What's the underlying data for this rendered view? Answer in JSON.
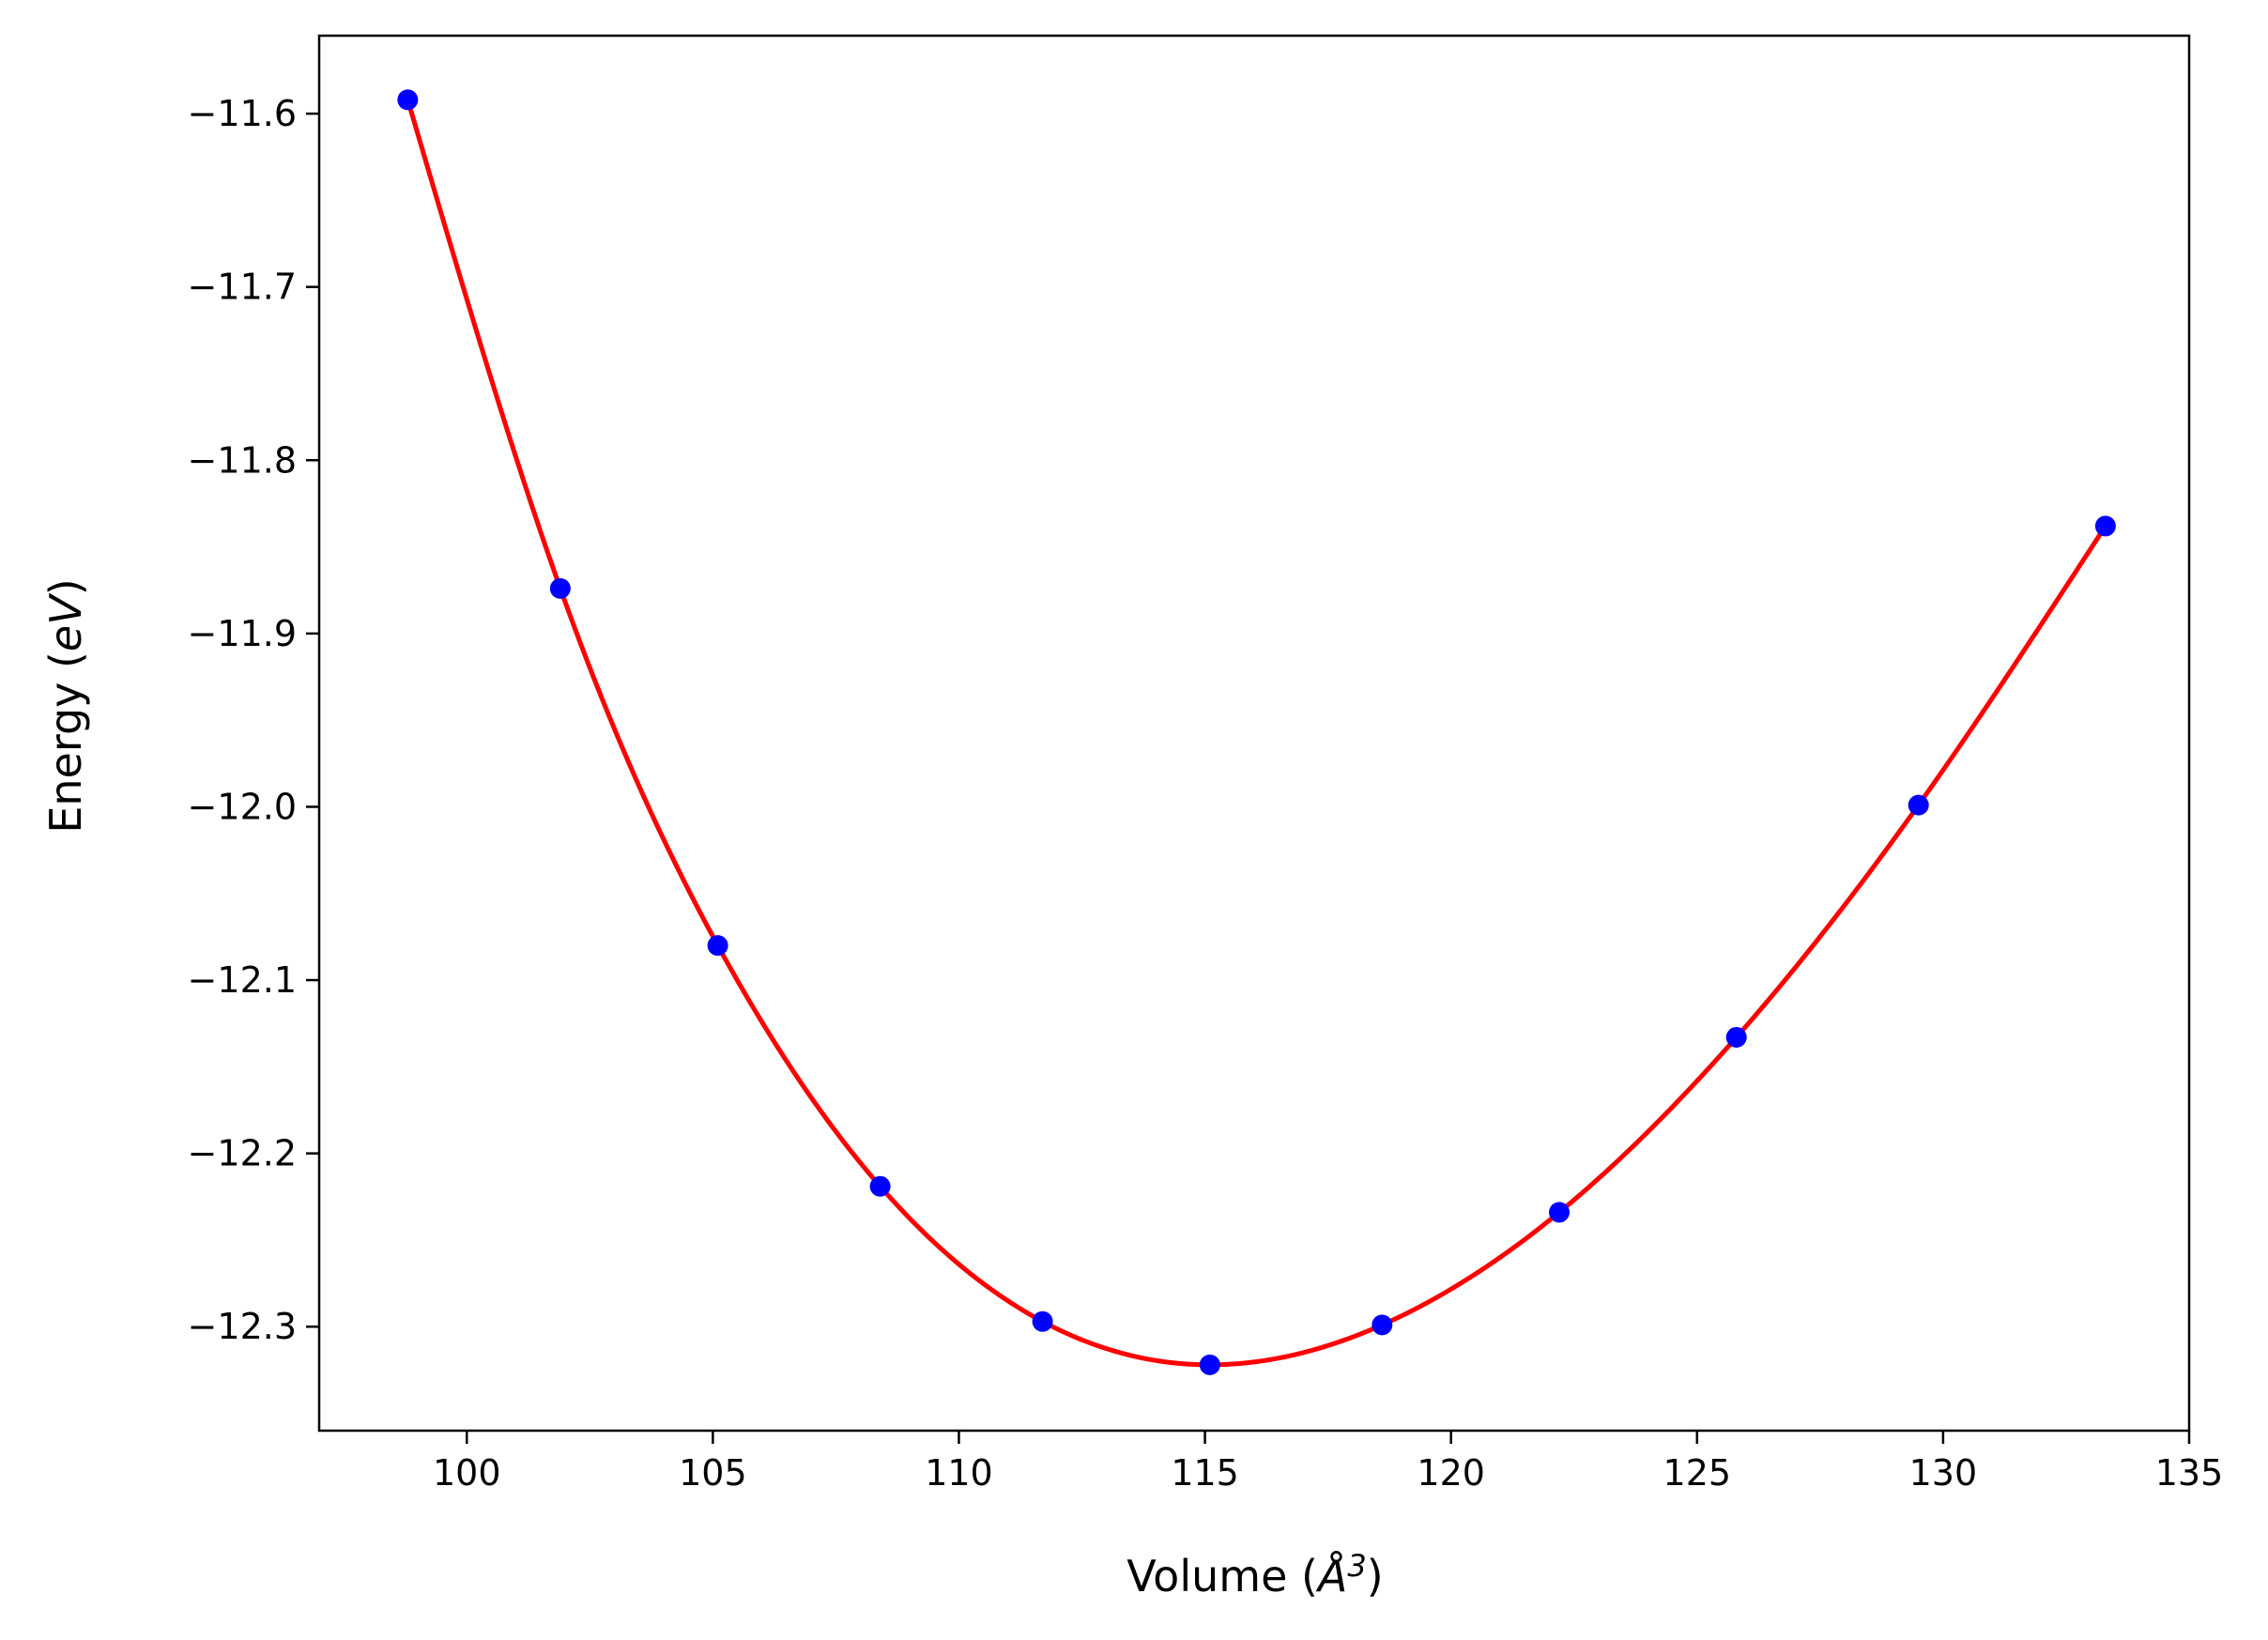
{
  "chart_data": {
    "type": "scatter",
    "xlabel": "Volume (Å³)",
    "ylabel": "Energy (eV)",
    "xlabel_parts": {
      "pre": "Volume (",
      "sym": "Å",
      "sup": "3",
      "post": ")"
    },
    "ylabel_parts": {
      "pre": "Energy (",
      "unit": "eV",
      "post": ")"
    },
    "xlim": [
      97,
      135
    ],
    "ylim": [
      -12.36,
      -11.555
    ],
    "xticks": [
      100,
      105,
      110,
      115,
      120,
      125,
      130,
      135
    ],
    "yticks": [
      -11.6,
      -11.7,
      -11.8,
      -11.9,
      -12.0,
      -12.1,
      -12.2,
      -12.3
    ],
    "xtick_labels": [
      "100",
      "105",
      "110",
      "115",
      "120",
      "125",
      "130",
      "135"
    ],
    "ytick_labels": [
      "−11.6",
      "−11.7",
      "−11.8",
      "−11.9",
      "−12.0",
      "−12.1",
      "−12.2",
      "−12.3"
    ],
    "grid": false,
    "series": [
      {
        "type": "scatter",
        "color": "#0000ff",
        "x": [
          98.8,
          101.9,
          105.1,
          108.4,
          111.7,
          115.1,
          118.6,
          122.2,
          125.8,
          129.5,
          133.3
        ],
        "y": [
          -11.592,
          -11.874,
          -12.08,
          -12.219,
          -12.297,
          -12.322,
          -12.299,
          -12.234,
          -12.133,
          -11.999,
          -11.838
        ]
      },
      {
        "type": "line",
        "color": "#ff0000",
        "fit": "curve through points",
        "x": [
          98.8,
          101.9,
          105.1,
          108.4,
          111.7,
          115.1,
          118.6,
          122.2,
          125.8,
          129.5,
          133.3
        ],
        "y": [
          -11.592,
          -11.874,
          -12.08,
          -12.219,
          -12.297,
          -12.322,
          -12.299,
          -12.234,
          -12.133,
          -11.999,
          -11.838
        ]
      }
    ]
  }
}
